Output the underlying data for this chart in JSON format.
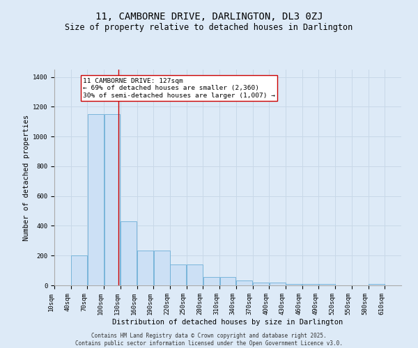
{
  "title1": "11, CAMBORNE DRIVE, DARLINGTON, DL3 0ZJ",
  "title2": "Size of property relative to detached houses in Darlington",
  "xlabel": "Distribution of detached houses by size in Darlington",
  "ylabel": "Number of detached properties",
  "bin_labels": [
    "10sqm",
    "40sqm",
    "70sqm",
    "100sqm",
    "130sqm",
    "160sqm",
    "190sqm",
    "220sqm",
    "250sqm",
    "280sqm",
    "310sqm",
    "340sqm",
    "370sqm",
    "400sqm",
    "430sqm",
    "460sqm",
    "490sqm",
    "520sqm",
    "550sqm",
    "580sqm",
    "610sqm"
  ],
  "bin_starts": [
    10,
    40,
    70,
    100,
    130,
    160,
    190,
    220,
    250,
    280,
    310,
    340,
    370,
    400,
    430,
    460,
    490,
    520,
    550,
    580,
    610
  ],
  "bar_heights": [
    0,
    200,
    1150,
    1150,
    430,
    235,
    235,
    140,
    140,
    55,
    55,
    35,
    20,
    20,
    10,
    10,
    10,
    0,
    0,
    10,
    0
  ],
  "bar_color": "#cce0f5",
  "bar_edgecolor": "#6baed6",
  "grid_color": "#c8d8e8",
  "bg_color": "#ddeaf7",
  "red_line_x": 127,
  "red_line_color": "#cc0000",
  "annotation_text": "11 CAMBORNE DRIVE: 127sqm\n← 69% of detached houses are smaller (2,360)\n30% of semi-detached houses are larger (1,007) →",
  "annotation_box_color": "#ffffff",
  "annotation_box_edgecolor": "#cc0000",
  "ylim": [
    0,
    1450
  ],
  "yticks": [
    0,
    200,
    400,
    600,
    800,
    1000,
    1200,
    1400
  ],
  "footer1": "Contains HM Land Registry data © Crown copyright and database right 2025.",
  "footer2": "Contains public sector information licensed under the Open Government Licence v3.0.",
  "title1_fontsize": 10,
  "title2_fontsize": 8.5,
  "ylabel_fontsize": 7.5,
  "xlabel_fontsize": 7.5,
  "tick_fontsize": 6.5,
  "annotation_fontsize": 6.8,
  "footer_fontsize": 5.5
}
